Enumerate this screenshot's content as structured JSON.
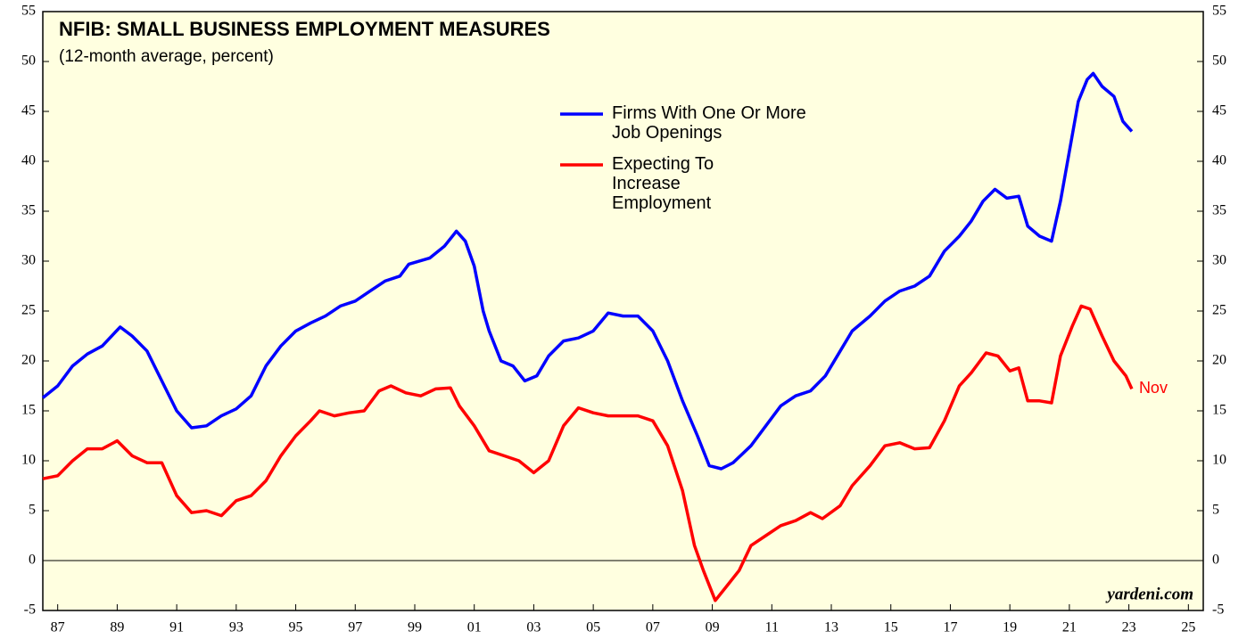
{
  "chart_data": {
    "type": "line",
    "title": "NFIB: SMALL BUSINESS EMPLOYMENT MEASURES",
    "subtitle": "(12-month average, percent)",
    "source": "yardeni.com",
    "annotations": [
      {
        "text": "Nov",
        "x": 2023.6,
        "y": 17.2,
        "color": "#ff0000"
      }
    ],
    "xlim": [
      1987,
      2026
    ],
    "xticks": [
      {
        "value": 1987.5,
        "label": "87"
      },
      {
        "value": 1989.5,
        "label": "89"
      },
      {
        "value": 1991.5,
        "label": "91"
      },
      {
        "value": 1993.5,
        "label": "93"
      },
      {
        "value": 1995.5,
        "label": "95"
      },
      {
        "value": 1997.5,
        "label": "97"
      },
      {
        "value": 1999.5,
        "label": "99"
      },
      {
        "value": 2001.5,
        "label": "01"
      },
      {
        "value": 2003.5,
        "label": "03"
      },
      {
        "value": 2005.5,
        "label": "05"
      },
      {
        "value": 2007.5,
        "label": "07"
      },
      {
        "value": 2009.5,
        "label": "09"
      },
      {
        "value": 2011.5,
        "label": "11"
      },
      {
        "value": 2013.5,
        "label": "13"
      },
      {
        "value": 2015.5,
        "label": "15"
      },
      {
        "value": 2017.5,
        "label": "17"
      },
      {
        "value": 2019.5,
        "label": "19"
      },
      {
        "value": 2021.5,
        "label": "21"
      },
      {
        "value": 2023.5,
        "label": "23"
      },
      {
        "value": 2025.5,
        "label": "25"
      }
    ],
    "ylim": [
      -5,
      55
    ],
    "yticks": [
      -5,
      0,
      5,
      10,
      15,
      20,
      25,
      30,
      35,
      40,
      45,
      50,
      55
    ],
    "y2lim": [
      -5,
      55
    ],
    "y2ticks": [
      -5,
      0,
      5,
      10,
      15,
      20,
      25,
      30,
      35,
      40,
      45,
      50,
      55
    ],
    "zero_line": true,
    "series": [
      {
        "name": "Firms With One Or More Job Openings",
        "color": "#0000ff",
        "x": [
          1987.0,
          1987.5,
          1988.0,
          1988.5,
          1989.0,
          1989.6,
          1990.0,
          1990.5,
          1991.0,
          1991.5,
          1992.0,
          1992.5,
          1993.0,
          1993.5,
          1994.0,
          1994.5,
          1995.0,
          1995.5,
          1996.0,
          1996.5,
          1997.0,
          1997.5,
          1998.0,
          1998.5,
          1999.0,
          1999.3,
          2000.0,
          2000.5,
          2000.9,
          2001.2,
          2001.5,
          2001.8,
          2002.0,
          2002.4,
          2002.8,
          2003.2,
          2003.6,
          2004.0,
          2004.5,
          2005.0,
          2005.5,
          2006.0,
          2006.5,
          2007.0,
          2007.5,
          2008.0,
          2008.5,
          2009.0,
          2009.4,
          2009.8,
          2010.2,
          2010.8,
          2011.3,
          2011.8,
          2012.3,
          2012.8,
          2013.3,
          2013.8,
          2014.2,
          2014.8,
          2015.3,
          2015.8,
          2016.3,
          2016.8,
          2017.3,
          2017.8,
          2018.2,
          2018.6,
          2019.0,
          2019.4,
          2019.8,
          2020.1,
          2020.5,
          2020.9,
          2021.2,
          2021.5,
          2021.8,
          2022.1,
          2022.3,
          2022.6,
          2023.0,
          2023.3,
          2023.6
        ],
        "values": [
          16.3,
          17.5,
          19.5,
          20.7,
          21.5,
          23.4,
          22.5,
          21.0,
          18.0,
          15.0,
          13.3,
          13.5,
          14.5,
          15.2,
          16.5,
          19.5,
          21.5,
          23.0,
          23.8,
          24.5,
          25.5,
          26.0,
          27.0,
          28.0,
          28.5,
          29.7,
          30.3,
          31.5,
          33.0,
          32.0,
          29.5,
          25.0,
          23.0,
          20.0,
          19.5,
          18.0,
          18.5,
          20.5,
          22.0,
          22.3,
          23.0,
          24.8,
          24.5,
          24.5,
          23.0,
          20.0,
          16.0,
          12.5,
          9.5,
          9.2,
          9.8,
          11.5,
          13.5,
          15.5,
          16.5,
          17.0,
          18.5,
          21.0,
          23.0,
          24.5,
          26.0,
          27.0,
          27.5,
          28.5,
          31.0,
          32.5,
          34.0,
          36.0,
          37.2,
          36.3,
          36.5,
          33.5,
          32.5,
          32.0,
          36.0,
          41.0,
          46.0,
          48.2,
          48.8,
          47.5,
          46.5,
          44.0,
          43.0
        ]
      },
      {
        "name": "Expecting To Increase Employment",
        "color": "#ff0000",
        "x": [
          1987.0,
          1987.5,
          1988.0,
          1988.5,
          1989.0,
          1989.5,
          1990.0,
          1990.5,
          1991.0,
          1991.5,
          1992.0,
          1992.5,
          1993.0,
          1993.5,
          1994.0,
          1994.5,
          1995.0,
          1995.5,
          1996.0,
          1996.3,
          1996.8,
          1997.3,
          1997.8,
          1998.3,
          1998.7,
          1999.2,
          1999.7,
          2000.2,
          2000.7,
          2001.0,
          2001.5,
          2002.0,
          2002.5,
          2003.0,
          2003.5,
          2004.0,
          2004.5,
          2005.0,
          2005.5,
          2006.0,
          2006.5,
          2007.0,
          2007.5,
          2008.0,
          2008.5,
          2008.9,
          2009.2,
          2009.6,
          2010.0,
          2010.4,
          2010.8,
          2011.3,
          2011.8,
          2012.3,
          2012.8,
          2013.2,
          2013.8,
          2014.2,
          2014.8,
          2015.3,
          2015.8,
          2016.3,
          2016.8,
          2017.3,
          2017.8,
          2018.2,
          2018.7,
          2019.1,
          2019.5,
          2019.8,
          2020.1,
          2020.5,
          2020.9,
          2021.2,
          2021.6,
          2021.9,
          2022.2,
          2022.6,
          2023.0,
          2023.4,
          2023.6
        ],
        "values": [
          8.2,
          8.5,
          10.0,
          11.2,
          11.2,
          12.0,
          10.5,
          9.8,
          9.8,
          6.5,
          4.8,
          5.0,
          4.5,
          6.0,
          6.5,
          8.0,
          10.5,
          12.5,
          14.0,
          15.0,
          14.5,
          14.8,
          15.0,
          17.0,
          17.5,
          16.8,
          16.5,
          17.2,
          17.3,
          15.5,
          13.5,
          11.0,
          10.5,
          10.0,
          8.8,
          10.0,
          13.5,
          15.3,
          14.8,
          14.5,
          14.5,
          14.5,
          14.0,
          11.5,
          7.0,
          1.5,
          -1.0,
          -4.0,
          -2.5,
          -1.0,
          1.5,
          2.5,
          3.5,
          4.0,
          4.8,
          4.2,
          5.5,
          7.5,
          9.5,
          11.5,
          11.8,
          11.2,
          11.3,
          14.0,
          17.5,
          18.8,
          20.8,
          20.5,
          19.0,
          19.3,
          16.0,
          16.0,
          15.8,
          20.5,
          23.5,
          25.5,
          25.2,
          22.5,
          20.0,
          18.5,
          17.2
        ]
      }
    ]
  }
}
